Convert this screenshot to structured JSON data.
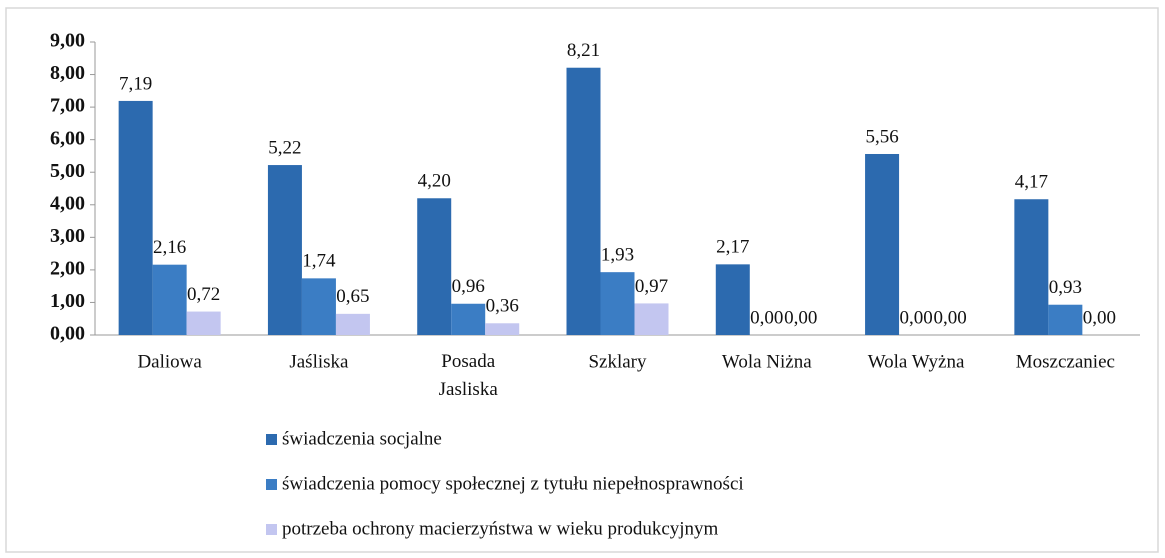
{
  "chart_data": {
    "type": "bar",
    "categories": [
      "Daliowa",
      "Jaśliska",
      "Posada\nJasliska",
      "Szklary",
      "Wola Niżna",
      "Wola Wyżna",
      "Moszczaniec"
    ],
    "series": [
      {
        "name": "świadczenia socjalne",
        "color": "#2c6aaf",
        "values": [
          7.19,
          5.22,
          4.2,
          8.21,
          2.17,
          5.56,
          4.17
        ],
        "value_labels": [
          "7,19",
          "5,22",
          "4,20",
          "8,21",
          "2,17",
          "5,56",
          "4,17"
        ]
      },
      {
        "name": "świadczenia pomocy społecznej z tytułu niepełnosprawności",
        "color": "#3b7dc4",
        "values": [
          2.16,
          1.74,
          0.96,
          1.93,
          0.0,
          0.0,
          0.93
        ],
        "value_labels": [
          "2,16",
          "1,74",
          "0,96",
          "1,93",
          "0,00",
          "0,00",
          "0,93"
        ]
      },
      {
        "name": "potrzeba ochrony macierzyństwa w wieku produkcyjnym",
        "color": "#c3c6f0",
        "values": [
          0.72,
          0.65,
          0.36,
          0.97,
          0.0,
          0.0,
          0.0
        ],
        "value_labels": [
          "0,72",
          "0,65",
          "0,36",
          "0,97",
          "0,00",
          "0,00",
          "0,00"
        ]
      }
    ],
    "ylim": [
      0,
      9
    ],
    "yticks": [
      {
        "value": 0,
        "label": "0,00"
      },
      {
        "value": 1,
        "label": "1,00"
      },
      {
        "value": 2,
        "label": "2,00"
      },
      {
        "value": 3,
        "label": "3,00"
      },
      {
        "value": 4,
        "label": "4,00"
      },
      {
        "value": 5,
        "label": "5,00"
      },
      {
        "value": 6,
        "label": "6,00"
      },
      {
        "value": 7,
        "label": "7,00"
      },
      {
        "value": 8,
        "label": "8,00"
      },
      {
        "value": 9,
        "label": "9,00"
      }
    ],
    "grid": false,
    "legend": "bottom"
  }
}
